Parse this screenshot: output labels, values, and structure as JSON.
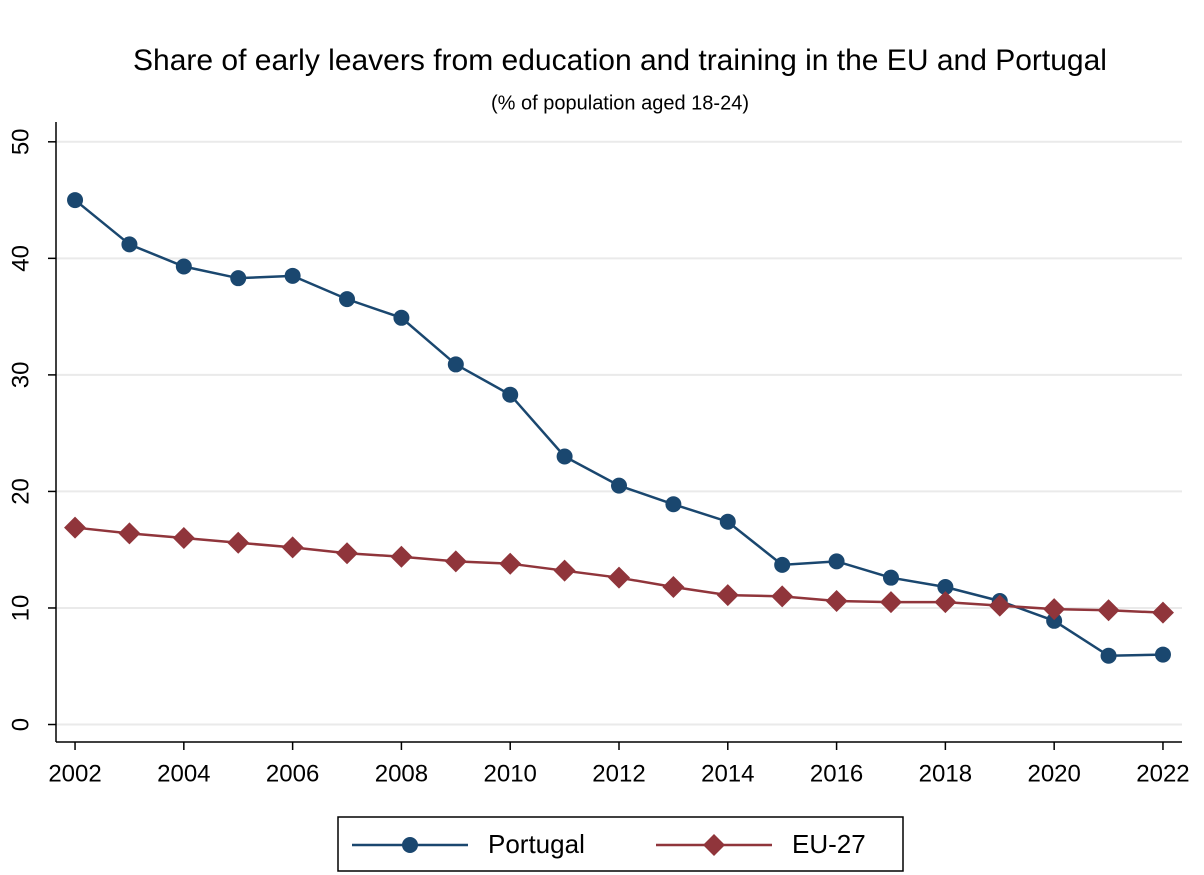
{
  "chart_data": {
    "type": "line",
    "title": "Share of early leavers from education and training in the EU and Portugal",
    "subtitle": "(% of population aged 18-24)",
    "x": [
      2002,
      2003,
      2004,
      2005,
      2006,
      2007,
      2008,
      2009,
      2010,
      2011,
      2012,
      2013,
      2014,
      2015,
      2016,
      2017,
      2018,
      2019,
      2020,
      2021,
      2022
    ],
    "series": [
      {
        "name": "Portugal",
        "color": "#1a476f",
        "marker": "circle",
        "values": [
          45.0,
          41.2,
          39.3,
          38.3,
          38.5,
          36.5,
          34.9,
          30.9,
          28.3,
          23.0,
          20.5,
          18.9,
          17.4,
          13.7,
          14.0,
          12.6,
          11.8,
          10.6,
          8.9,
          5.9,
          6.0
        ]
      },
      {
        "name": "EU-27",
        "color": "#90353b",
        "marker": "diamond",
        "values": [
          16.9,
          16.4,
          16.0,
          15.6,
          15.2,
          14.7,
          14.4,
          14.0,
          13.8,
          13.2,
          12.6,
          11.8,
          11.1,
          11.0,
          10.6,
          10.5,
          10.5,
          10.2,
          9.9,
          9.8,
          9.6
        ]
      }
    ],
    "xlim": [
      2001.65,
      2022.35
    ],
    "xticks": [
      2002,
      2004,
      2006,
      2008,
      2010,
      2012,
      2014,
      2016,
      2018,
      2020,
      2022
    ],
    "ylim": [
      -1.5,
      51.7
    ],
    "yticks": [
      0,
      10,
      20,
      30,
      40,
      50
    ],
    "grid": true,
    "legend": "bottom"
  }
}
